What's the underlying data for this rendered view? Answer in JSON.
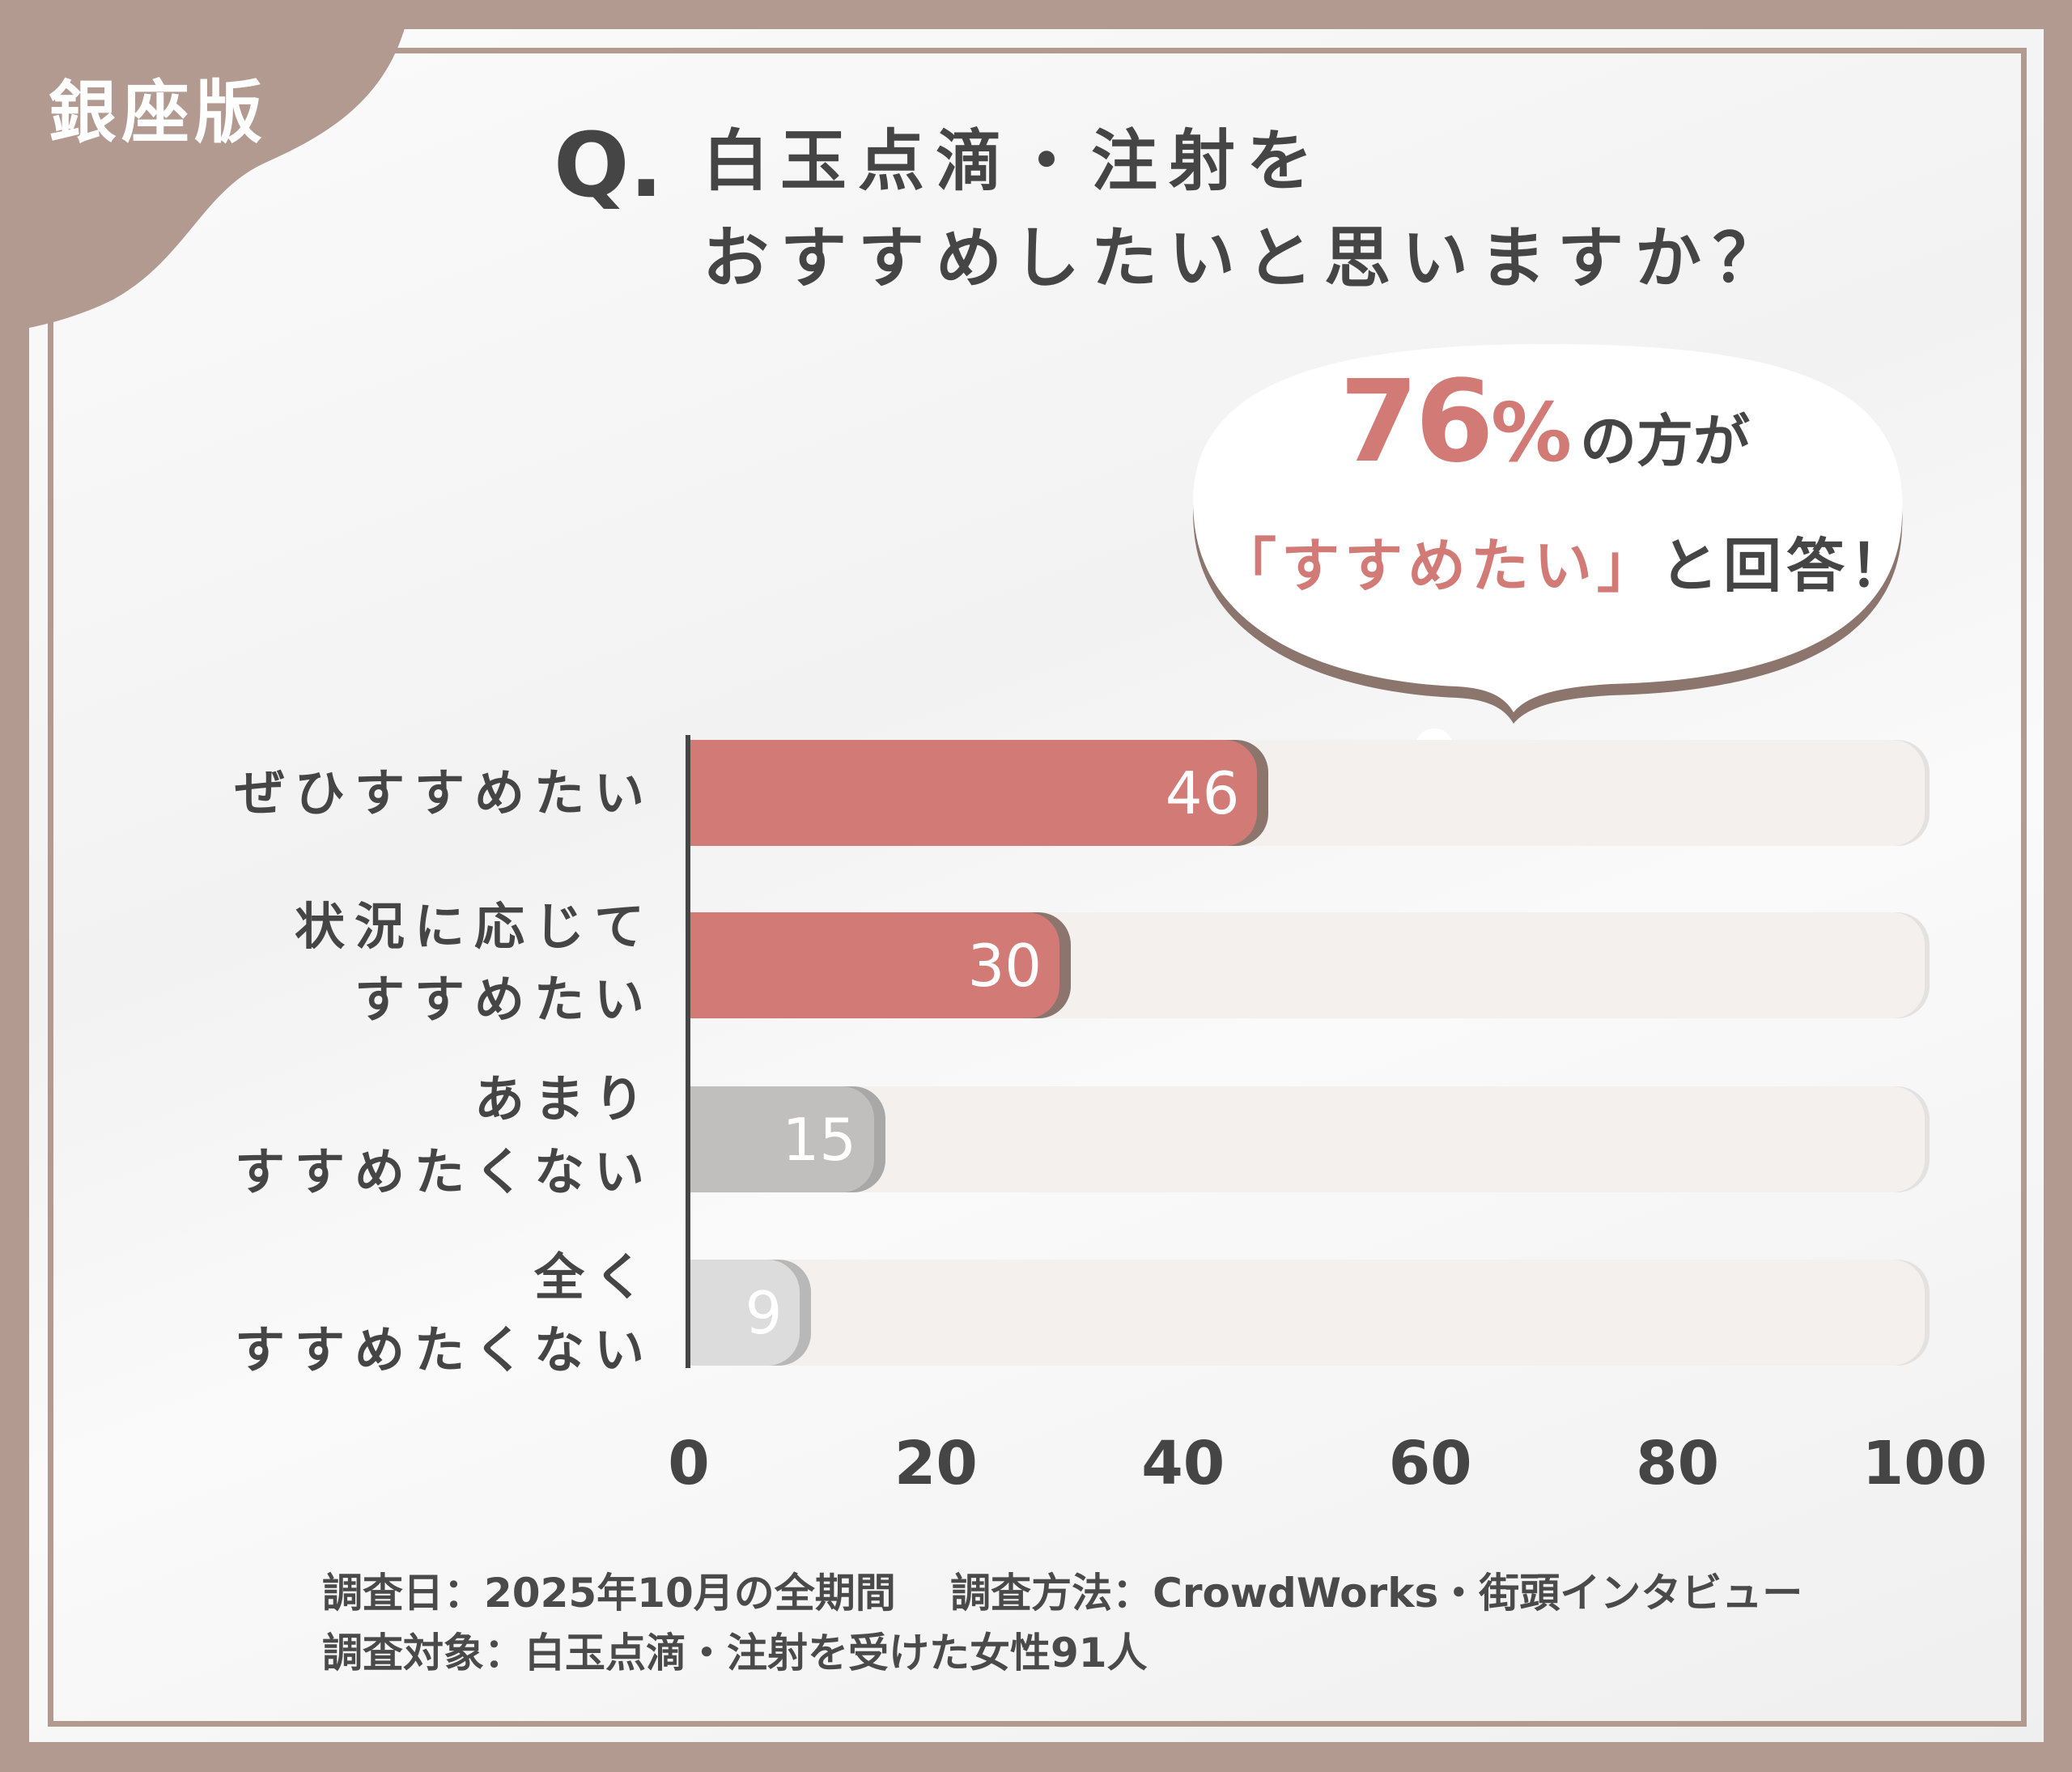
{
  "edition_label": "銀座版",
  "question": {
    "prefix": "Q.",
    "line1": "白玉点滴・注射を",
    "line2": "おすすめしたいと思いますか？"
  },
  "callout": {
    "percent_value": "76",
    "percent_sign": "%",
    "suffix": "の方が",
    "quote": "「すすめたい」",
    "ending": "と回答！"
  },
  "colors": {
    "accent": "#d27b76",
    "accent_shadow": "#8b756d",
    "gray": "#c1bfbd",
    "light_gray": "#dcdcdc",
    "frame": "#b39a90",
    "track": "#f3f0ee"
  },
  "chart_data": {
    "type": "bar",
    "orientation": "horizontal",
    "categories": [
      "ぜひすすめたい",
      "状況に応じてすすめたい",
      "あまりすすめたくない",
      "全くすすめたくない"
    ],
    "category_lines": [
      [
        "ぜひすすめたい"
      ],
      [
        "状況に応じて",
        "すすめたい"
      ],
      [
        "あまり",
        "すすめたくない"
      ],
      [
        "全く",
        "すすめたくない"
      ]
    ],
    "values": [
      46,
      30,
      15,
      9
    ],
    "data_labels": [
      "46",
      "30",
      "15",
      "9"
    ],
    "bar_colors": [
      "#d27b76",
      "#d27b76",
      "#c1bfbd",
      "#dcdcdc"
    ],
    "xlim": [
      0,
      100
    ],
    "xticks": [
      "0",
      "20",
      "40",
      "60",
      "80",
      "100"
    ],
    "grid": false
  },
  "footer": {
    "line1": "調査日：2025年10月の全期間　 調査方法：CrowdWorks・街頭インタビュー",
    "line2": "調査対象：白玉点滴・注射を受けた女性91人"
  }
}
